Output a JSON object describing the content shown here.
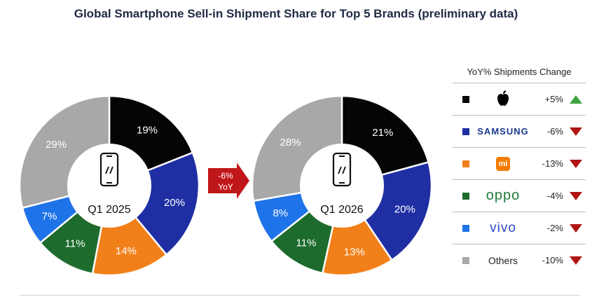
{
  "title": "Global Smartphone Sell-in Shipment Share for Top 5 Brands (preliminary data)",
  "colors": {
    "Apple": "#050505",
    "Samsung": "#1f2fa3",
    "Xiaomi": "#f2801a",
    "OPPO": "#1e6b2e",
    "vivo": "#1f73e8",
    "Others": "#a8a8a8",
    "up": "#3da33d",
    "down": "#b01414",
    "arrow": "#c0171a"
  },
  "chart_data": [
    {
      "type": "pie",
      "center_label": "Q1 2025",
      "categories": [
        "Apple",
        "Samsung",
        "Xiaomi",
        "OPPO",
        "vivo",
        "Others"
      ],
      "values": [
        19,
        20,
        14,
        11,
        7,
        29
      ],
      "labels": [
        "19%",
        "20%",
        "14%",
        "11%",
        "7%",
        "29%"
      ]
    },
    {
      "type": "pie",
      "center_label": "Q1 2026",
      "categories": [
        "Apple",
        "Samsung",
        "Xiaomi",
        "OPPO",
        "vivo",
        "Others"
      ],
      "values": [
        21,
        20,
        13,
        11,
        8,
        28
      ],
      "labels": [
        "21%",
        "20%",
        "13%",
        "11%",
        "8%",
        "28%"
      ]
    }
  ],
  "arrow": {
    "line1": "-6%",
    "line2": "YoY"
  },
  "legend": {
    "header": "YoY% Shipments Change",
    "rows": [
      {
        "brand": "Apple",
        "display": "",
        "change": "+5%",
        "direction": "up"
      },
      {
        "brand": "Samsung",
        "display": "SAMSUNG",
        "change": "-6%",
        "direction": "down"
      },
      {
        "brand": "Xiaomi",
        "display": "mi",
        "change": "-13%",
        "direction": "down"
      },
      {
        "brand": "OPPO",
        "display": "oppo",
        "change": "-4%",
        "direction": "down"
      },
      {
        "brand": "vivo",
        "display": "vivo",
        "change": "-2%",
        "direction": "down"
      },
      {
        "brand": "Others",
        "display": "Others",
        "change": "-10%",
        "direction": "down"
      }
    ]
  }
}
